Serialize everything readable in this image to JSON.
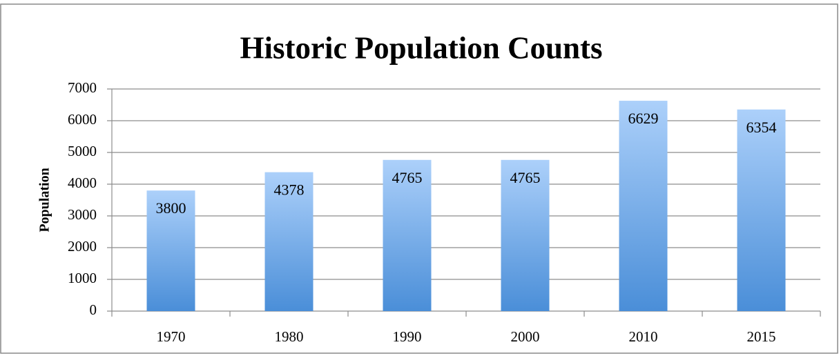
{
  "chart_data": {
    "type": "bar",
    "title": "Historic Population Counts",
    "y_label": "Population",
    "categories": [
      "1970",
      "1980",
      "1990",
      "2000",
      "2010",
      "2015"
    ],
    "values": [
      3800,
      4378,
      4765,
      4765,
      6629,
      6354
    ],
    "color": "#4a8ed8",
    "ylim": [
      0,
      7000
    ],
    "yticks": [
      0,
      1000,
      2000,
      3000,
      4000,
      5000,
      6000,
      7000
    ],
    "grid": true
  }
}
